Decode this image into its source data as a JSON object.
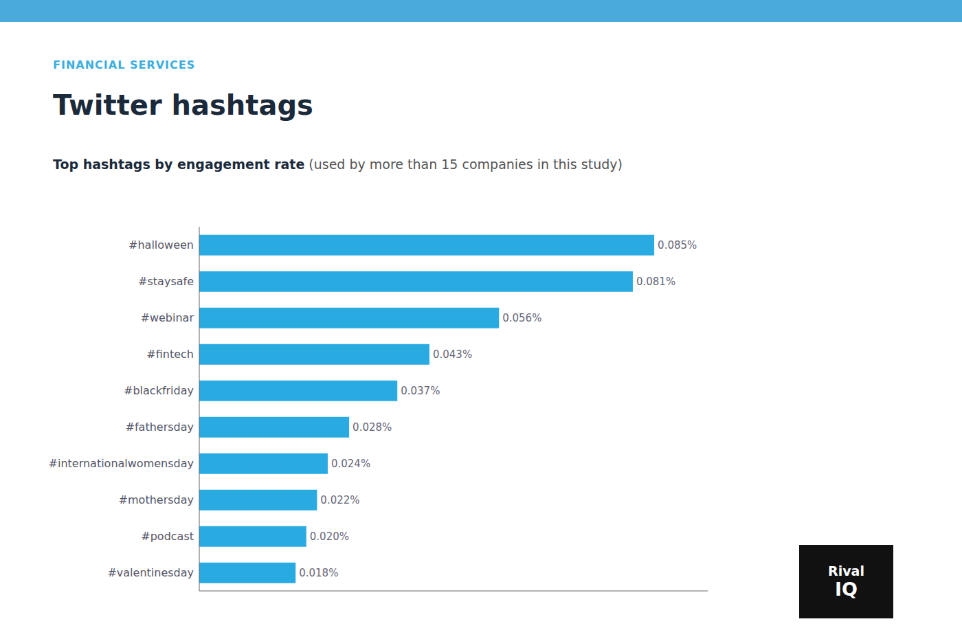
{
  "chart_data": {
    "type": "bar",
    "orientation": "horizontal",
    "title": "Twitter hashtags",
    "subtitle": [
      "Top hashtags by engagement rate",
      "(used by more than 15 companies in this study)"
    ],
    "annotations": [
      "FINANCIAL SERVICES",
      "Rival",
      "IQ"
    ],
    "categories": [
      "#valentinesday",
      "#podcast",
      "#mothersday",
      "#internationalwomensday",
      "#fathersday",
      "#blackfriday",
      "#fintech",
      "#webinar",
      "#staysafe",
      "#halloween"
    ],
    "values": [
      0.00018,
      0.0002,
      0.00022,
      0.00024,
      0.00028,
      0.00037,
      0.00043,
      0.00056,
      0.00081,
      0.00085
    ],
    "value_labels": [
      "0.018%",
      "0.020%",
      "0.022%",
      "0.024%",
      "0.028%",
      "0.037%",
      "0.043%",
      "0.056%",
      "0.081%",
      "0.085%"
    ],
    "data_labels": true,
    "color": "#29ABE2",
    "xlim": [
      0,
      0.00095
    ],
    "grid": false,
    "tick_labels": "y"
  }
}
